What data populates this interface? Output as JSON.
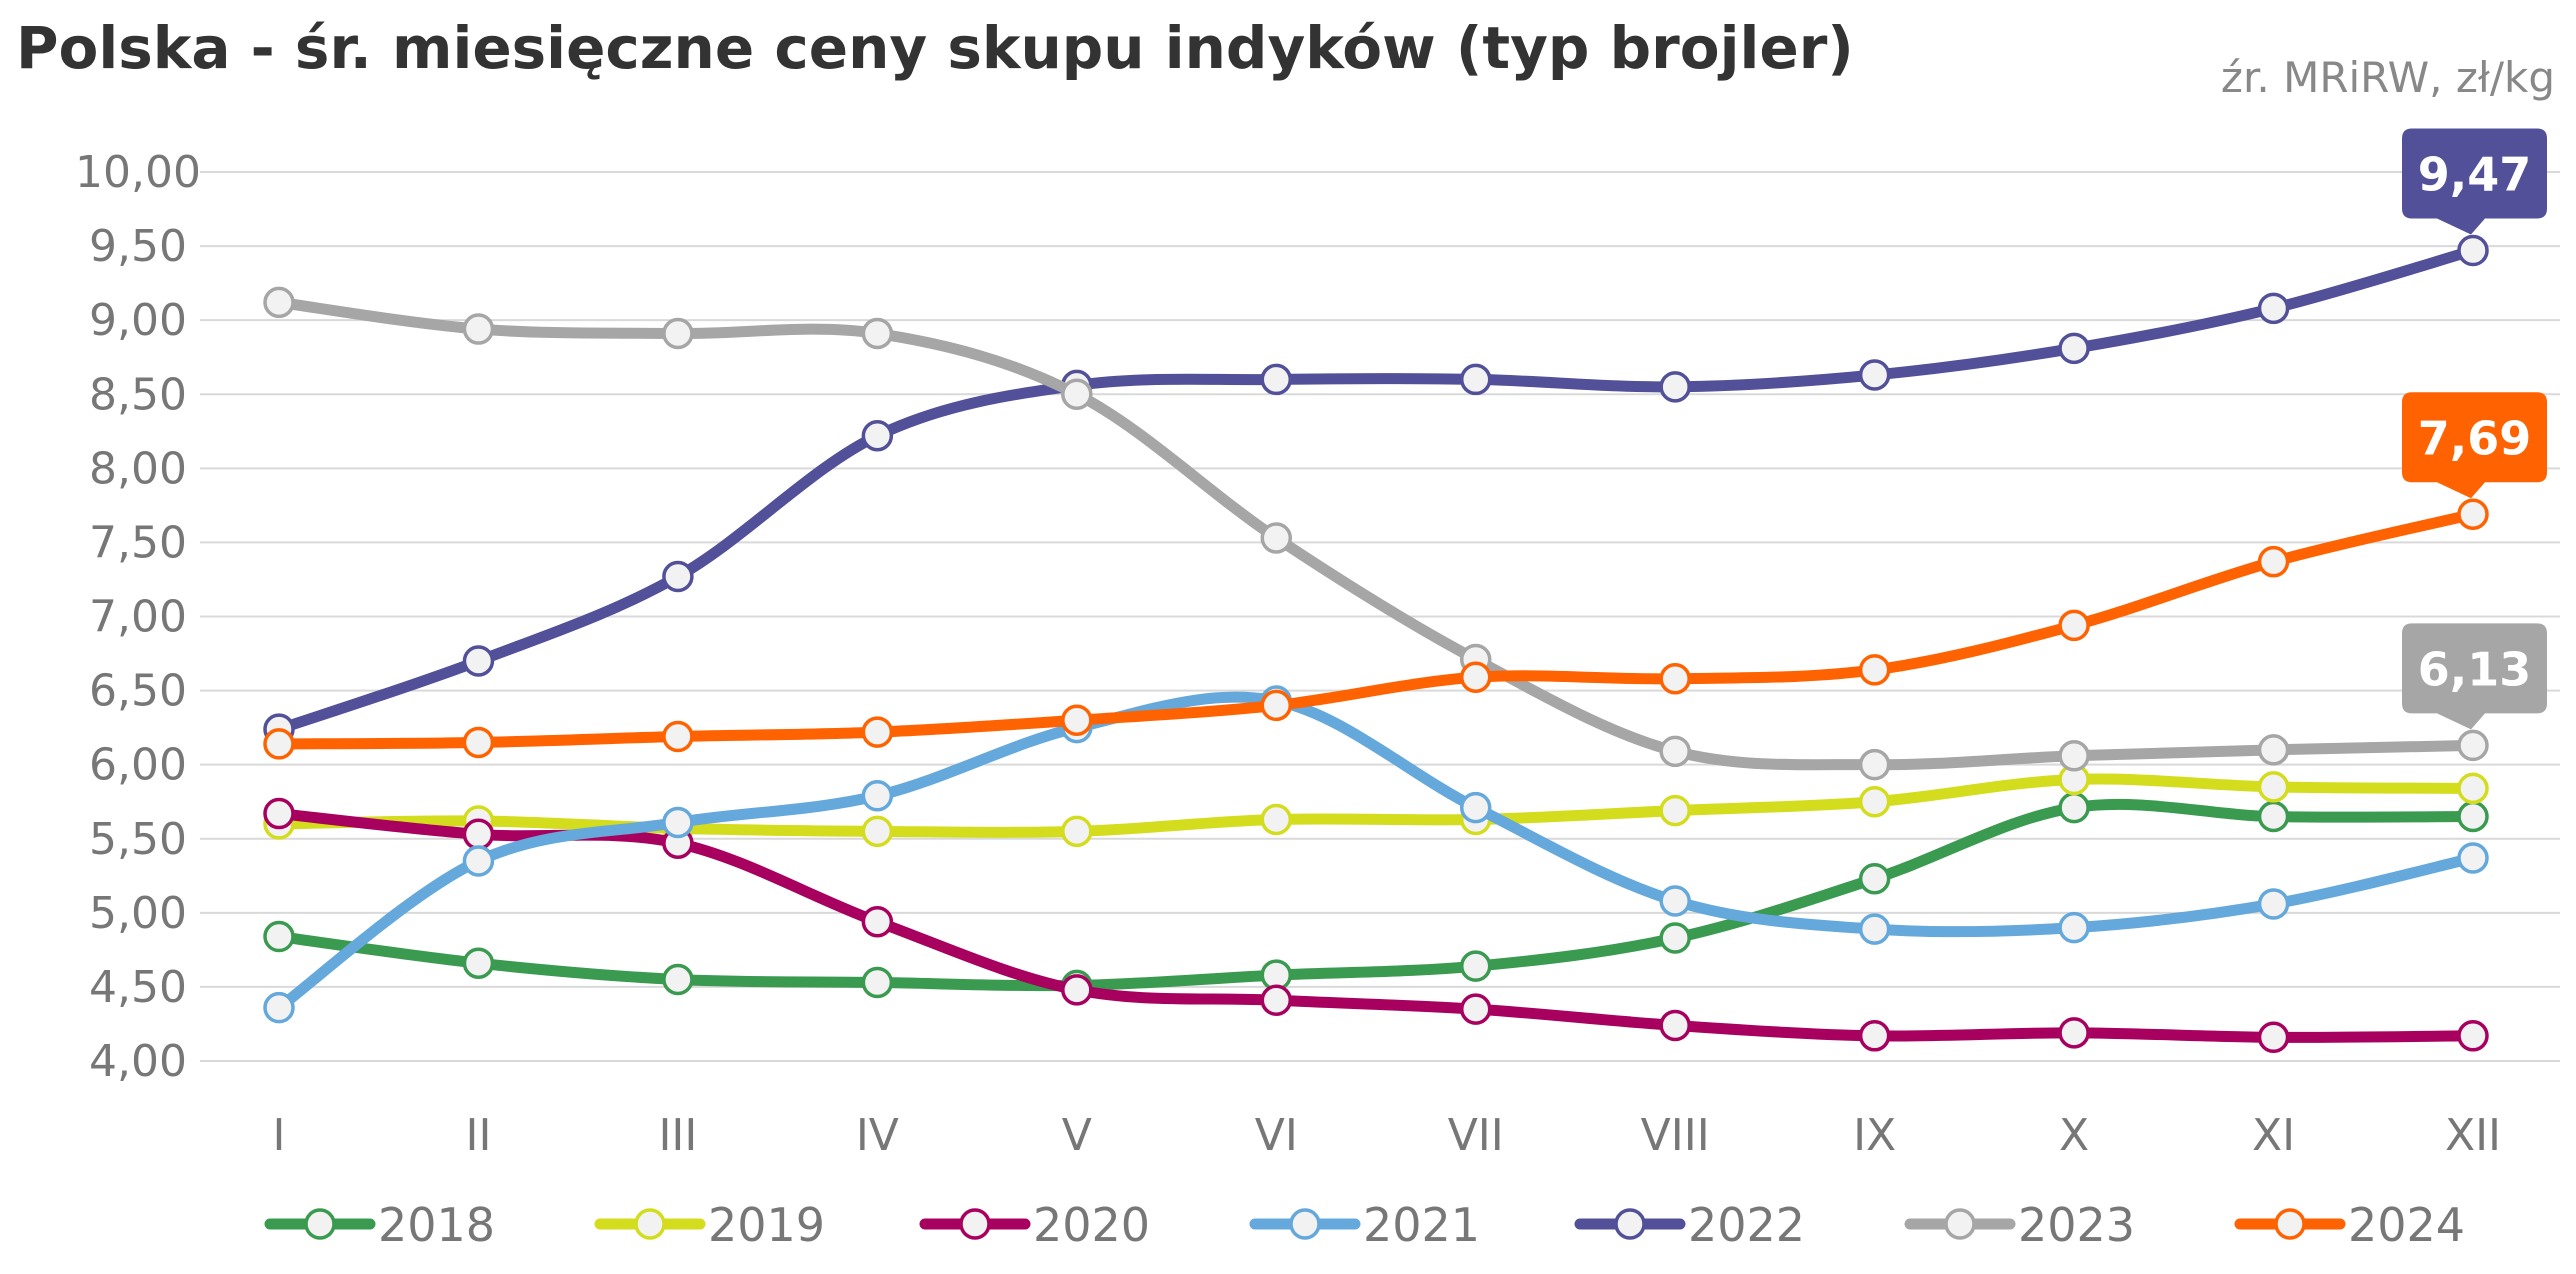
{
  "chart_data": {
    "type": "line",
    "title": "Polska - śr. miesięczne ceny skupu indyków (typ brojler)",
    "unit_label": "źr. MRiRW, zł/kg",
    "xlabel": "",
    "ylabel": "",
    "ylim": [
      4.0,
      10.0
    ],
    "y_ticks": [
      "4,00",
      "4,50",
      "5,00",
      "5,50",
      "6,00",
      "6,50",
      "7,00",
      "7,50",
      "8,00",
      "8,50",
      "9,00",
      "9,50",
      "10,00"
    ],
    "y_tick_values": [
      4.0,
      4.5,
      5.0,
      5.5,
      6.0,
      6.5,
      7.0,
      7.5,
      8.0,
      8.5,
      9.0,
      9.5,
      10.0
    ],
    "categories": [
      "I",
      "II",
      "III",
      "IV",
      "V",
      "VI",
      "VII",
      "VIII",
      "IX",
      "X",
      "XI",
      "XII"
    ],
    "grid": true,
    "legend_position": "bottom",
    "series": [
      {
        "name": "2018",
        "color": "#3a9a50",
        "values": [
          4.84,
          4.66,
          4.55,
          4.53,
          4.51,
          4.58,
          4.64,
          4.83,
          5.23,
          5.71,
          5.65,
          5.65
        ]
      },
      {
        "name": "2019",
        "color": "#d4dc1e",
        "values": [
          5.6,
          5.62,
          5.57,
          5.55,
          5.55,
          5.63,
          5.63,
          5.69,
          5.75,
          5.9,
          5.85,
          5.84
        ]
      },
      {
        "name": "2020",
        "color": "#a8005e",
        "values": [
          5.67,
          5.53,
          5.47,
          4.94,
          4.48,
          4.41,
          4.35,
          4.24,
          4.17,
          4.19,
          4.16,
          4.17
        ]
      },
      {
        "name": "2021",
        "color": "#64a8dc",
        "values": [
          4.36,
          5.35,
          5.61,
          5.79,
          6.25,
          6.43,
          5.71,
          5.08,
          4.89,
          4.9,
          5.06,
          5.37
        ]
      },
      {
        "name": "2022",
        "color": "#525098",
        "values": [
          6.24,
          6.7,
          7.27,
          8.22,
          8.56,
          8.6,
          8.6,
          8.55,
          8.63,
          8.81,
          9.08,
          9.47
        ]
      },
      {
        "name": "2023",
        "color": "#a6a6a6",
        "values": [
          9.12,
          8.94,
          8.91,
          8.91,
          8.5,
          7.53,
          6.71,
          6.09,
          6.0,
          6.06,
          6.1,
          6.13
        ]
      },
      {
        "name": "2024",
        "color": "#ff6200",
        "values": [
          6.14,
          6.15,
          6.19,
          6.22,
          6.3,
          6.4,
          6.59,
          6.58,
          6.64,
          6.94,
          7.37,
          7.69
        ]
      }
    ],
    "annotations": [
      {
        "series": "2022",
        "text": "9,47"
      },
      {
        "series": "2024",
        "text": "7,69"
      },
      {
        "series": "2023",
        "text": "6,13"
      }
    ]
  }
}
